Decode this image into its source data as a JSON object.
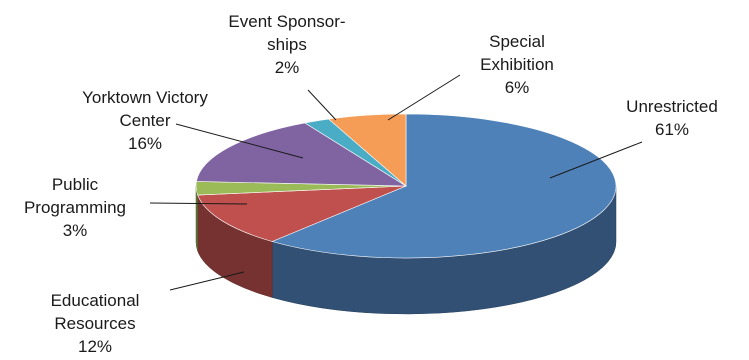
{
  "chart_data": {
    "type": "pie",
    "title": "",
    "slices": [
      {
        "name": "Unrestricted",
        "value": 61,
        "value_label": "61%",
        "color": "#4f81b9",
        "label_lines": [
          "Unrestricted",
          "61%"
        ]
      },
      {
        "name": "Educational Resources",
        "value": 12,
        "value_label": "12%",
        "color": "#bf504d",
        "label_lines": [
          "Educational",
          "Resources",
          "12%"
        ]
      },
      {
        "name": "Public Programming",
        "value": 3,
        "value_label": "3%",
        "color": "#9bbb59",
        "label_lines": [
          "Public",
          "Programming",
          "3%"
        ]
      },
      {
        "name": "Yorktown Victory Center",
        "value": 16,
        "value_label": "16%",
        "color": "#8064a2",
        "label_lines": [
          "Yorktown Victory",
          "Center",
          "16%"
        ]
      },
      {
        "name": "Event Sponsorships",
        "value": 2,
        "value_label": "2%",
        "color": "#4bacc6",
        "label_lines": [
          "Event Sponsor-",
          "ships",
          "2%"
        ]
      },
      {
        "name": "Special Exhibition",
        "value": 6,
        "value_label": "6%",
        "color": "#f59d56",
        "label_lines": [
          "Special",
          "Exhibition",
          "6%"
        ]
      }
    ],
    "style": "3d",
    "legend": "none"
  }
}
